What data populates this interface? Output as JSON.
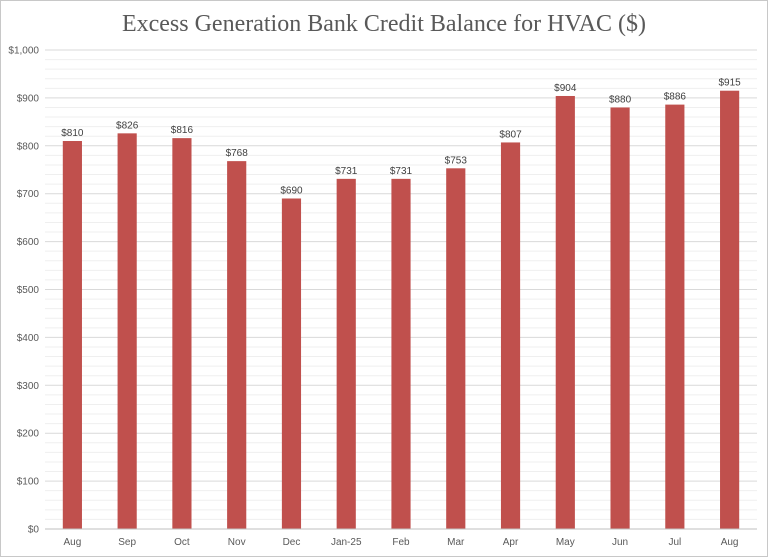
{
  "chart_data": {
    "type": "bar",
    "title": "Excess Generation Bank Credit Balance for HVAC ($)",
    "xlabel": "",
    "ylabel": "",
    "categories": [
      "Aug",
      "Sep",
      "Oct",
      "Nov",
      "Dec",
      "Jan-25",
      "Feb",
      "Mar",
      "Apr",
      "May",
      "Jun",
      "Jul",
      "Aug"
    ],
    "values": [
      810,
      826,
      816,
      768,
      690,
      731,
      731,
      753,
      807,
      904,
      880,
      886,
      915
    ],
    "data_labels": [
      "$810",
      "$826",
      "$816",
      "$768",
      "$690",
      "$731",
      "$731",
      "$753",
      "$807",
      "$904",
      "$880",
      "$886",
      "$915"
    ],
    "ylim": [
      0,
      1000
    ],
    "y_ticks": [
      0,
      100,
      200,
      300,
      400,
      500,
      600,
      700,
      800,
      900,
      1000
    ],
    "y_tick_labels": [
      "$0",
      "$100",
      "$200",
      "$300",
      "$400",
      "$500",
      "$600",
      "$700",
      "$800",
      "$900",
      "$1,000"
    ],
    "grid": true,
    "bar_color": "#c0504d",
    "grid_color": "#d9d9d9",
    "minor_grid_color": "#efefef",
    "legend": "none"
  }
}
